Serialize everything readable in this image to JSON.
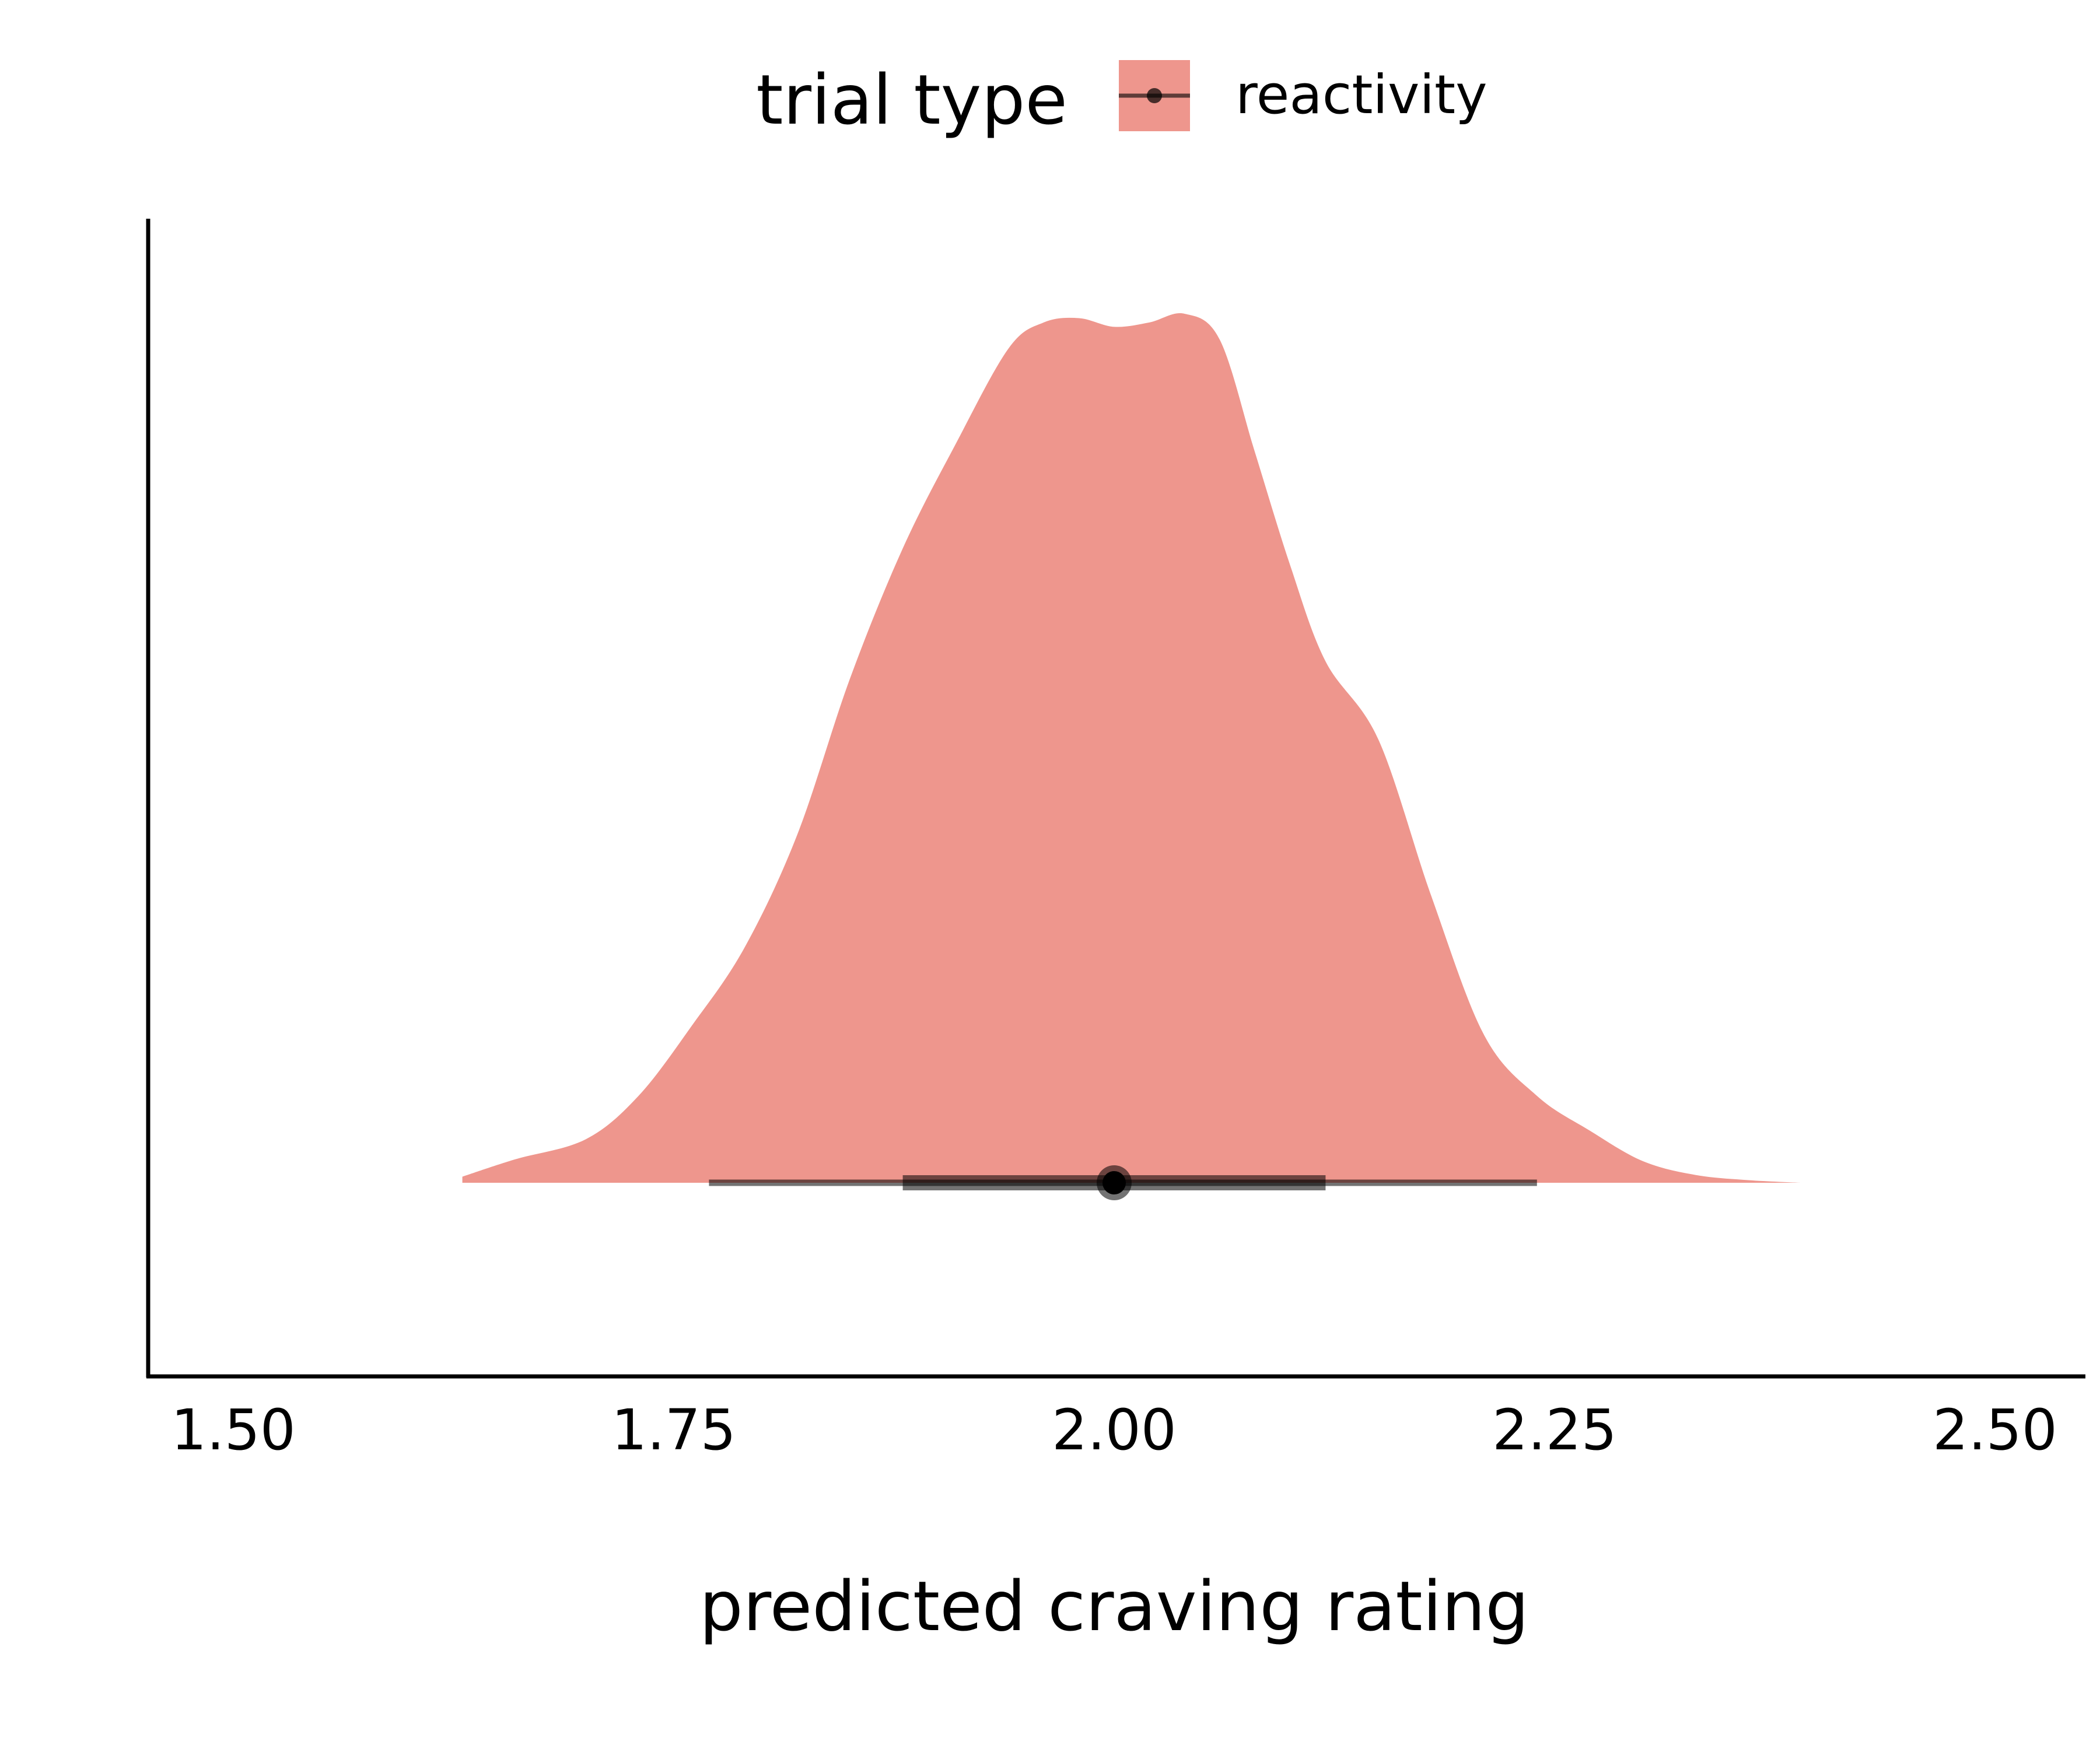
{
  "chart_data": {
    "type": "area",
    "subtype": "density-halfeye",
    "xlabel": "predicted craving rating",
    "ylabel": "",
    "xlim": [
      1.5,
      2.5
    ],
    "x_ticks": [
      1.5,
      1.75,
      2.0,
      2.25,
      2.5
    ],
    "x_tick_labels": [
      "1.50",
      "1.75",
      "2.00",
      "2.25",
      "2.50"
    ],
    "grid": false,
    "legend": {
      "title": "trial type",
      "placement": "top",
      "entries": [
        {
          "label": "reactivity",
          "color": "#EE968D"
        }
      ]
    },
    "series": [
      {
        "name": "reactivity",
        "color": "#EE968D",
        "density": {
          "x": [
            1.63,
            1.66,
            1.7,
            1.73,
            1.76,
            1.79,
            1.82,
            1.85,
            1.88,
            1.91,
            1.94,
            1.96,
            1.98,
            2.0,
            2.02,
            2.04,
            2.06,
            2.08,
            2.1,
            2.12,
            2.15,
            2.18,
            2.21,
            2.24,
            2.27,
            2.3,
            2.33,
            2.36,
            2.39
          ],
          "y": [
            0.007,
            0.027,
            0.05,
            0.1,
            0.18,
            0.27,
            0.4,
            0.58,
            0.73,
            0.85,
            0.96,
            0.99,
            0.995,
            0.985,
            0.99,
            1.0,
            0.97,
            0.84,
            0.71,
            0.6,
            0.51,
            0.33,
            0.17,
            0.1,
            0.06,
            0.025,
            0.009,
            0.003,
            0.0
          ]
        },
        "point_interval": {
          "median": 2.0,
          "inner": [
            1.88,
            2.12
          ],
          "outer": [
            1.77,
            2.24
          ]
        }
      }
    ]
  }
}
